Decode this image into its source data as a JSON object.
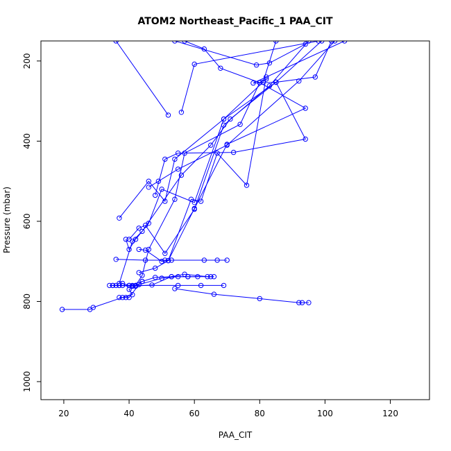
{
  "chart_data": {
    "type": "line",
    "title": "ATOM2 Northeast_Pacific_1 PAA_CIT",
    "xlabel": "PAA_CIT",
    "ylabel": "Pressure (mbar)",
    "xlim": [
      13,
      132
    ],
    "ylim": [
      1045,
      150
    ],
    "y_reversed": true,
    "x_ticks": [
      20,
      40,
      60,
      80,
      100,
      120
    ],
    "y_ticks": [
      200,
      400,
      600,
      800,
      1000
    ],
    "grid": false,
    "legend": "none",
    "color": "#0000ff",
    "marker": "open-circle",
    "series": [
      {
        "points": [
          [
            19.5,
            820
          ],
          [
            28,
            820
          ],
          [
            29,
            815
          ],
          [
            38,
            790
          ],
          [
            41,
            783
          ],
          [
            40,
            770
          ],
          [
            42,
            762
          ],
          [
            44,
            750
          ]
        ]
      },
      {
        "points": [
          [
            34,
            760
          ],
          [
            36,
            760
          ],
          [
            38,
            760
          ],
          [
            40,
            760
          ],
          [
            42,
            760
          ],
          [
            55,
            760
          ],
          [
            62,
            760
          ],
          [
            69,
            760
          ]
        ]
      },
      {
        "points": [
          [
            37,
            790
          ],
          [
            39,
            790
          ],
          [
            40,
            790
          ],
          [
            43,
            758
          ],
          [
            50,
            742
          ],
          [
            55,
            738
          ],
          [
            58,
            738
          ],
          [
            61,
            738
          ]
        ]
      },
      {
        "points": [
          [
            54,
            768
          ],
          [
            66,
            782
          ],
          [
            80,
            793
          ],
          [
            92,
            803
          ],
          [
            93,
            803
          ],
          [
            95,
            803
          ]
        ]
      },
      {
        "points": [
          [
            35,
            760
          ],
          [
            37,
            760
          ],
          [
            38,
            755
          ],
          [
            40,
            760
          ],
          [
            44,
            750
          ],
          [
            48,
            740
          ],
          [
            53,
            738
          ],
          [
            57,
            732
          ],
          [
            64,
            738
          ],
          [
            66,
            738
          ]
        ]
      },
      {
        "points": [
          [
            35,
            760
          ],
          [
            37,
            760
          ],
          [
            41,
            762
          ],
          [
            47,
            759
          ],
          [
            53,
            738
          ],
          [
            58,
            738
          ],
          [
            65,
            738
          ]
        ]
      },
      {
        "points": [
          [
            43,
            728
          ],
          [
            48,
            717
          ],
          [
            52,
            698
          ],
          [
            60,
            568
          ],
          [
            70,
            408
          ],
          [
            94,
            318
          ],
          [
            80,
            254
          ],
          [
            68,
            218
          ],
          [
            63,
            170
          ],
          [
            57,
            150
          ]
        ]
      },
      {
        "points": [
          [
            36,
            695
          ],
          [
            45,
            697
          ],
          [
            51,
            697
          ],
          [
            53,
            697
          ],
          [
            63,
            697
          ],
          [
            67,
            697
          ],
          [
            70,
            697
          ]
        ]
      },
      {
        "points": [
          [
            43,
            670
          ],
          [
            45,
            672
          ],
          [
            50,
            700
          ],
          [
            52,
            698
          ],
          [
            59,
            545
          ],
          [
            62,
            550
          ],
          [
            67,
            430
          ],
          [
            76,
            510
          ],
          [
            82,
            240
          ]
        ]
      },
      {
        "points": [
          [
            41,
            760
          ],
          [
            42,
            760
          ],
          [
            44,
            735
          ],
          [
            46,
            670
          ],
          [
            54,
            545
          ],
          [
            57,
            430
          ],
          [
            74,
            358
          ],
          [
            80,
            254
          ],
          [
            82,
            245
          ]
        ]
      },
      {
        "points": [
          [
            37,
            592
          ],
          [
            46,
            500
          ],
          [
            51,
            550
          ],
          [
            54,
            445
          ],
          [
            69,
            345
          ],
          [
            85,
            253
          ],
          [
            97,
            240
          ],
          [
            102,
            150
          ]
        ]
      },
      {
        "points": [
          [
            39,
            645
          ],
          [
            40,
            670
          ],
          [
            42,
            645
          ],
          [
            46,
            605
          ],
          [
            50,
            520
          ],
          [
            60,
            553
          ],
          [
            69,
            345
          ],
          [
            81,
            253
          ],
          [
            85,
            150
          ]
        ]
      },
      {
        "points": [
          [
            40,
            645
          ],
          [
            43,
            617
          ],
          [
            45,
            610
          ],
          [
            51,
            680
          ],
          [
            60,
            570
          ],
          [
            69,
            360
          ],
          [
            83,
            262
          ],
          [
            95,
            150
          ]
        ]
      },
      {
        "points": [
          [
            37,
            755
          ],
          [
            41,
            650
          ],
          [
            44,
            625
          ],
          [
            56,
            485
          ],
          [
            65,
            410
          ],
          [
            71,
            345
          ],
          [
            85,
            253
          ],
          [
            99,
            150
          ]
        ]
      },
      {
        "points": [
          [
            48,
            535
          ],
          [
            51,
            445
          ],
          [
            55,
            430
          ],
          [
            72,
            428
          ],
          [
            94,
            395
          ],
          [
            85,
            253
          ],
          [
            78,
            255
          ],
          [
            106,
            150
          ]
        ]
      },
      {
        "points": [
          [
            46,
            515
          ],
          [
            49,
            500
          ],
          [
            55,
            470
          ],
          [
            70,
            410
          ],
          [
            92,
            250
          ],
          [
            103,
            150
          ]
        ]
      },
      {
        "points": [
          [
            52,
            335
          ],
          [
            36,
            150
          ]
        ]
      },
      {
        "points": [
          [
            56,
            328
          ],
          [
            60,
            208
          ],
          [
            98,
            150
          ]
        ]
      },
      {
        "points": [
          [
            54,
            150
          ],
          [
            79,
            210
          ],
          [
            83,
            205
          ],
          [
            94,
            158
          ]
        ]
      }
    ]
  }
}
